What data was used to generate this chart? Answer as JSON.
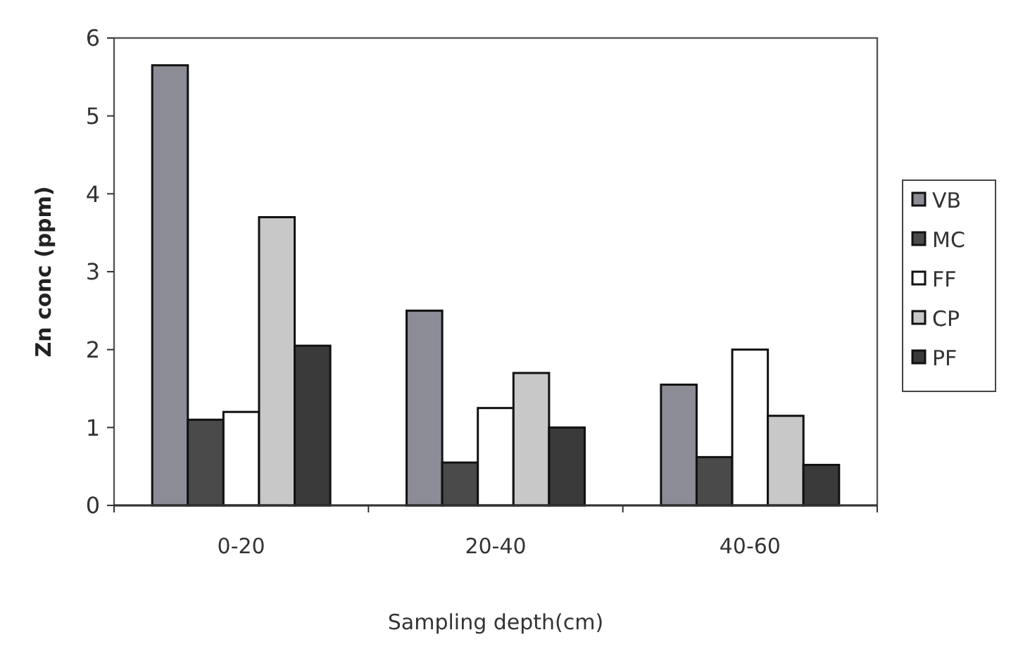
{
  "chart_data": {
    "type": "bar",
    "xlabel": "Sampling depth(cm)",
    "ylabel": "Zn conc (ppm)",
    "categories": [
      "0-20",
      "20-40",
      "40-60"
    ],
    "series": [
      {
        "name": "VB",
        "color": "#8c8c96",
        "values": [
          5.65,
          2.5,
          1.55
        ]
      },
      {
        "name": "MC",
        "color": "#4a4a4a",
        "values": [
          1.1,
          0.55,
          0.62
        ]
      },
      {
        "name": "FF",
        "color": "#ffffff",
        "values": [
          1.2,
          1.25,
          2.0
        ]
      },
      {
        "name": "CP",
        "color": "#c8c8c8",
        "values": [
          3.7,
          1.7,
          1.15
        ]
      },
      {
        "name": "PF",
        "color": "#3a3a3a",
        "values": [
          2.05,
          1.0,
          0.52
        ]
      }
    ],
    "ylim": [
      0,
      6
    ],
    "yticks": [
      0,
      1,
      2,
      3,
      4,
      5,
      6
    ],
    "grid": false,
    "legend": "right"
  }
}
